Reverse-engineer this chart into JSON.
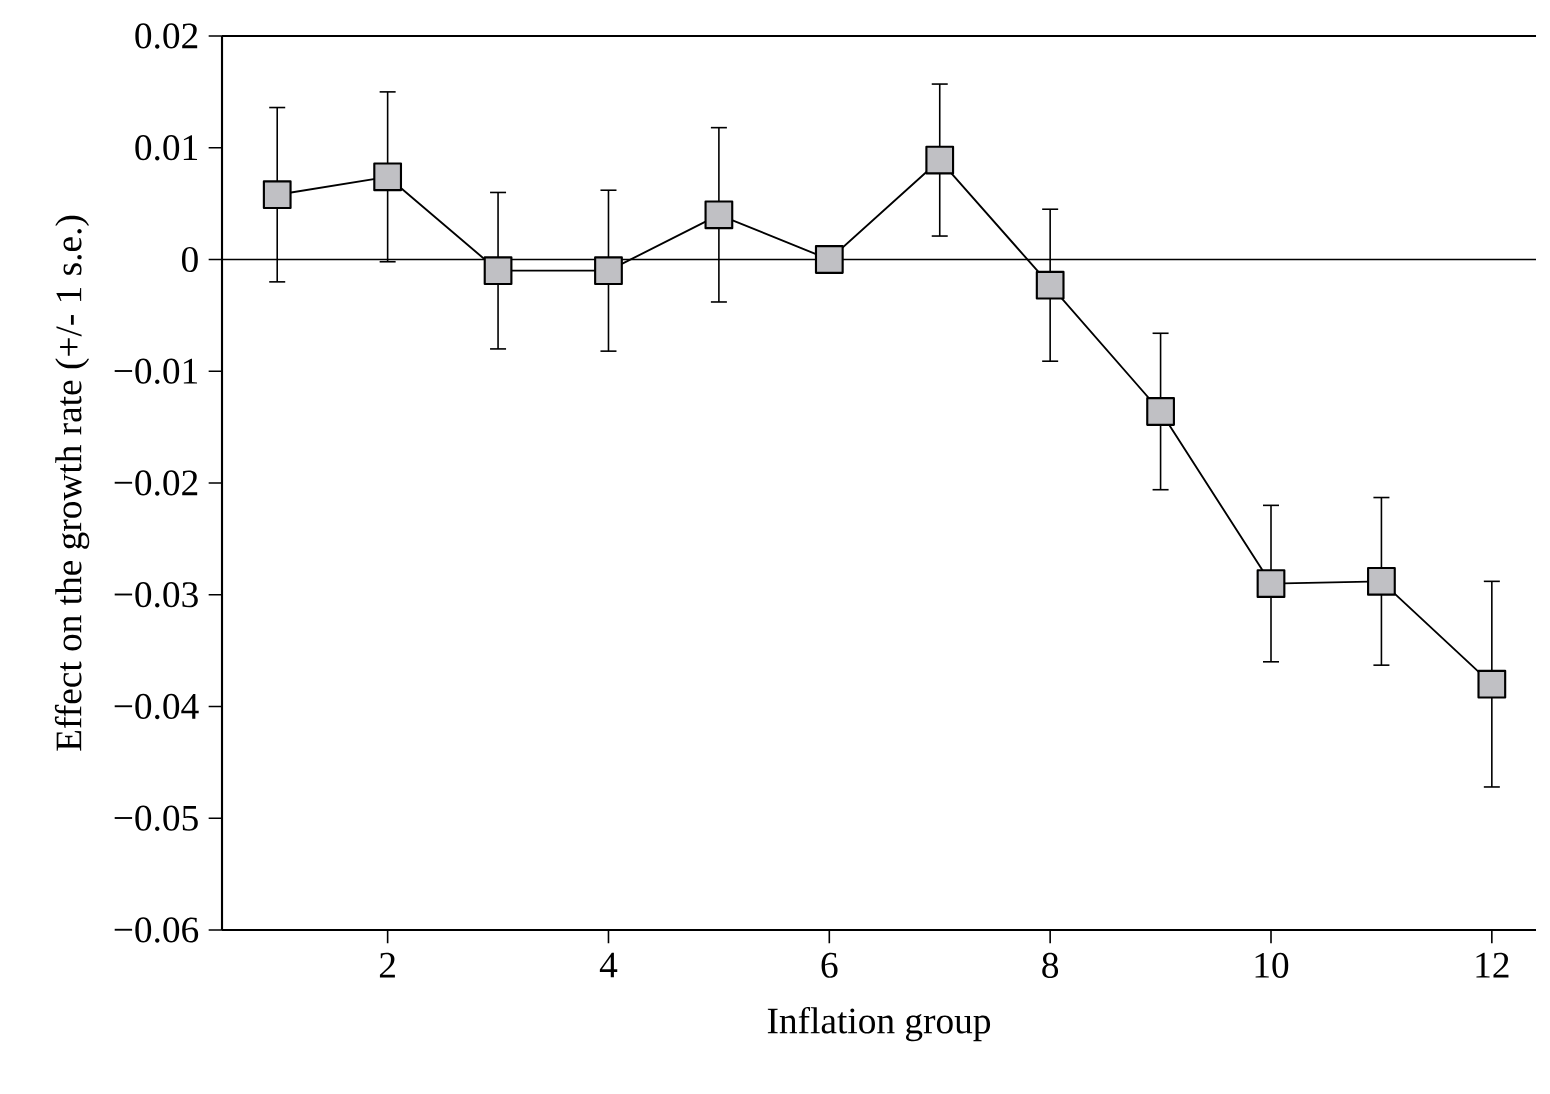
{
  "chart_data": {
    "type": "line",
    "xlabel": "Inflation group",
    "ylabel": "Effect on the growth rate (+/- 1 s.e.)",
    "x": [
      1,
      2,
      3,
      4,
      5,
      6,
      7,
      8,
      9,
      10,
      11,
      12
    ],
    "series": [
      {
        "color": "#c0c0c4",
        "values": [
          0.0058,
          0.0074,
          -0.001,
          -0.001,
          0.004,
          0.0,
          0.0089,
          -0.0023,
          -0.0136,
          -0.029,
          -0.0288,
          -0.038
        ],
        "errors": [
          0.0078,
          0.0076,
          0.007,
          0.0072,
          0.0078,
          null,
          0.0068,
          0.0068,
          0.007,
          0.007,
          0.0075,
          0.0092
        ]
      }
    ],
    "xlim": [
      0.5,
      12.4
    ],
    "ylim": [
      -0.06,
      0.02
    ],
    "xticks": [
      2,
      4,
      6,
      8,
      10,
      12
    ],
    "yticks": [
      0.02,
      0.01,
      0,
      {
        "value": -0.01,
        "label": "−0.01"
      },
      {
        "value": -0.02,
        "label": "−0.02"
      },
      {
        "value": -0.03,
        "label": "−0.03"
      },
      {
        "value": -0.04,
        "label": "−0.04"
      },
      {
        "value": -0.05,
        "label": "−0.05"
      },
      {
        "value": -0.06,
        "label": "−0.06"
      }
    ],
    "ref_lines": [
      {
        "axis": "y",
        "value": 0
      }
    ],
    "marker": "square",
    "line_style": "solid",
    "grid": false
  }
}
